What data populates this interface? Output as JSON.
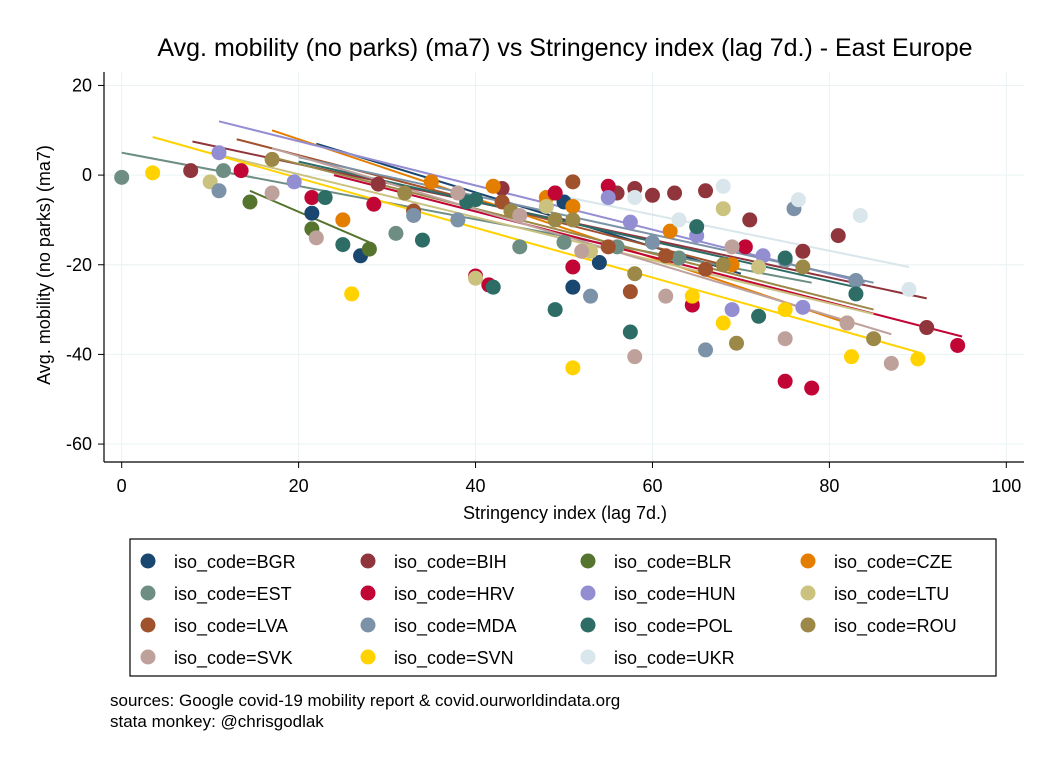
{
  "chart_data": {
    "type": "scatter",
    "title": "Avg. mobility (no parks) (ma7) vs Stringency index (lag 7d.) - East Europe",
    "xlabel": "Stringency index (lag 7d.)",
    "ylabel": "Avg. mobility (no parks) (ma7)",
    "xlim": [
      -2,
      102
    ],
    "ylim": [
      -64,
      23
    ],
    "xticks": [
      0,
      20,
      40,
      60,
      80,
      100
    ],
    "yticks": [
      20,
      0,
      -20,
      -40,
      -60
    ],
    "grid": true,
    "legend_position": "bottom",
    "legend_prefix": "iso_code=",
    "series": [
      {
        "name": "BGR",
        "color": "#1a476f",
        "points": [
          [
            21.5,
            -8.5
          ],
          [
            27,
            -18
          ],
          [
            50,
            -6
          ],
          [
            51,
            -25
          ],
          [
            54,
            -19.5
          ]
        ],
        "fit": [
          [
            22,
            7
          ],
          [
            70,
            -22
          ]
        ]
      },
      {
        "name": "BIH",
        "color": "#90353b",
        "points": [
          [
            7.8,
            1
          ],
          [
            29,
            -2
          ],
          [
            43,
            -3
          ],
          [
            49,
            -4
          ],
          [
            56,
            -4
          ],
          [
            58,
            -3
          ],
          [
            60,
            -4.5
          ],
          [
            62.5,
            -4
          ],
          [
            66,
            -3.5
          ],
          [
            71,
            -10
          ],
          [
            77,
            -17
          ],
          [
            81,
            -13.5
          ],
          [
            91,
            -34
          ]
        ],
        "fit": [
          [
            8,
            7.5
          ],
          [
            91,
            -27.5
          ]
        ]
      },
      {
        "name": "BLR",
        "color": "#55752f",
        "points": [
          [
            14.5,
            -6
          ],
          [
            21.5,
            -12
          ],
          [
            28,
            -16.5
          ]
        ],
        "fit": [
          [
            14.5,
            -3.5
          ],
          [
            28,
            -15
          ]
        ]
      },
      {
        "name": "CZE",
        "color": "#e37e00",
        "points": [
          [
            25,
            -10
          ],
          [
            35,
            -1.5
          ],
          [
            42,
            -2.5
          ],
          [
            48,
            -5
          ],
          [
            51,
            -7
          ],
          [
            62,
            -12.5
          ],
          [
            69,
            -20
          ],
          [
            82,
            -33
          ]
        ],
        "fit": [
          [
            17,
            10
          ],
          [
            82,
            -33
          ]
        ]
      },
      {
        "name": "EST",
        "color": "#6e8e84",
        "points": [
          [
            0,
            -0.5
          ],
          [
            11.5,
            1
          ],
          [
            31,
            -13
          ],
          [
            45,
            -16
          ],
          [
            50,
            -15
          ],
          [
            56,
            -16
          ],
          [
            63,
            -18.5
          ]
        ],
        "fit": [
          [
            0,
            5
          ],
          [
            78,
            -24
          ]
        ]
      },
      {
        "name": "HRV",
        "color": "#c10534",
        "points": [
          [
            13.5,
            1
          ],
          [
            21.5,
            -5
          ],
          [
            28.5,
            -6.5
          ],
          [
            40,
            -22.5
          ],
          [
            41.5,
            -24.5
          ],
          [
            49,
            -4
          ],
          [
            51,
            -20.5
          ],
          [
            55,
            -2.5
          ],
          [
            64.5,
            -29
          ],
          [
            70.5,
            -16
          ],
          [
            75,
            -46
          ],
          [
            78,
            -47.5
          ],
          [
            94.5,
            -38
          ]
        ],
        "fit": [
          [
            24,
            0
          ],
          [
            95,
            -36
          ]
        ]
      },
      {
        "name": "HUN",
        "color": "#938dd2",
        "points": [
          [
            11,
            5
          ],
          [
            19.5,
            -1.5
          ],
          [
            55,
            -5
          ],
          [
            57.5,
            -10.5
          ],
          [
            65,
            -13.5
          ],
          [
            69,
            -30
          ],
          [
            72.5,
            -18
          ],
          [
            77,
            -29.5
          ]
        ],
        "fit": [
          [
            11,
            12
          ],
          [
            84,
            -24
          ]
        ]
      },
      {
        "name": "LTU",
        "color": "#cac27e",
        "points": [
          [
            10,
            -1.5
          ],
          [
            40,
            -23
          ],
          [
            48,
            -7
          ],
          [
            53,
            -17
          ],
          [
            68,
            -7.5
          ],
          [
            72,
            -20.5
          ],
          [
            82,
            -33
          ]
        ],
        "fit": [
          [
            10,
            5
          ],
          [
            85,
            -31
          ]
        ]
      },
      {
        "name": "LVA",
        "color": "#a0522d",
        "points": [
          [
            33,
            -8
          ],
          [
            43,
            -6
          ],
          [
            51,
            -1.5
          ],
          [
            55,
            -16
          ],
          [
            57.5,
            -26
          ],
          [
            61.5,
            -18
          ],
          [
            66,
            -21
          ]
        ],
        "fit": [
          [
            13,
            8
          ],
          [
            68,
            -20
          ]
        ]
      },
      {
        "name": "MDA",
        "color": "#7b92a8",
        "points": [
          [
            11,
            -3.5
          ],
          [
            33,
            -9
          ],
          [
            38,
            -10
          ],
          [
            53,
            -27
          ],
          [
            60,
            -15
          ],
          [
            66,
            -39
          ],
          [
            75,
            -19
          ],
          [
            76,
            -7.5
          ],
          [
            83,
            -23.5
          ]
        ],
        "fit": [
          [
            20,
            4
          ],
          [
            85,
            -24
          ]
        ]
      },
      {
        "name": "POL",
        "color": "#2d6d66",
        "points": [
          [
            23,
            -5
          ],
          [
            25,
            -15.5
          ],
          [
            34,
            -14.5
          ],
          [
            39,
            -6
          ],
          [
            40,
            -5.5
          ],
          [
            42,
            -25
          ],
          [
            49,
            -30
          ],
          [
            57.5,
            -35
          ],
          [
            65,
            -11.5
          ],
          [
            72,
            -31.5
          ],
          [
            75,
            -18.5
          ],
          [
            83,
            -26.5
          ]
        ],
        "fit": [
          [
            20,
            3
          ],
          [
            83,
            -25
          ]
        ]
      },
      {
        "name": "ROU",
        "color": "#9c8847",
        "points": [
          [
            17,
            3.5
          ],
          [
            32,
            -4
          ],
          [
            44,
            -8
          ],
          [
            49,
            -10
          ],
          [
            51,
            -10
          ],
          [
            58,
            -22
          ],
          [
            68,
            -20
          ],
          [
            69.5,
            -37.5
          ],
          [
            77,
            -20.5
          ],
          [
            85,
            -36.5
          ]
        ],
        "fit": [
          [
            17,
            4
          ],
          [
            85,
            -30
          ]
        ]
      },
      {
        "name": "SVK",
        "color": "#bfa19c",
        "points": [
          [
            17,
            -4
          ],
          [
            22,
            -14
          ],
          [
            38,
            -4
          ],
          [
            45,
            -9
          ],
          [
            52,
            -17
          ],
          [
            58,
            -40.5
          ],
          [
            61.5,
            -27
          ],
          [
            69,
            -16
          ],
          [
            75,
            -36.5
          ],
          [
            82,
            -33
          ],
          [
            87,
            -42
          ]
        ],
        "fit": [
          [
            17,
            6
          ],
          [
            87,
            -35.5
          ]
        ]
      },
      {
        "name": "SVN",
        "color": "#ffd200",
        "points": [
          [
            3.5,
            0.5
          ],
          [
            26,
            -26.5
          ],
          [
            51,
            -43
          ],
          [
            64.5,
            -27
          ],
          [
            68,
            -33
          ],
          [
            75,
            -30
          ],
          [
            82.5,
            -40.5
          ],
          [
            90,
            -41
          ]
        ],
        "fit": [
          [
            3.5,
            8.5
          ],
          [
            90,
            -39.5
          ]
        ]
      },
      {
        "name": "UKR",
        "color": "#d9e6eb",
        "points": [
          [
            58,
            -5
          ],
          [
            63,
            -10
          ],
          [
            68,
            -2.5
          ],
          [
            76.5,
            -5.5
          ],
          [
            83.5,
            -9
          ],
          [
            89,
            -25.5
          ]
        ],
        "fit": [
          [
            48,
            -4
          ],
          [
            89,
            -20.5
          ]
        ]
      }
    ]
  },
  "notes": {
    "sources": "sources: Google covid-19 mobility report & covid.ourworldindata.org",
    "author": "stata monkey: @chrisgodlak"
  }
}
